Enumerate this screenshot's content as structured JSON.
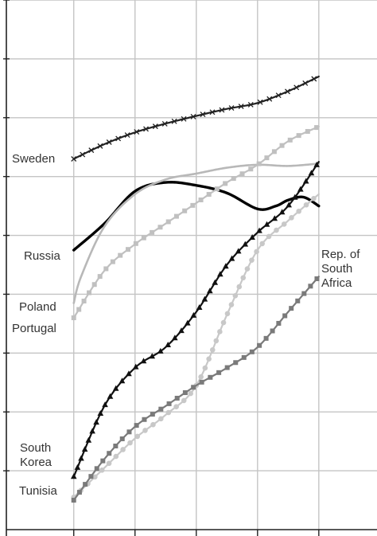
{
  "chart_data": {
    "type": "line",
    "title": "",
    "xlabel": "",
    "ylabel": "",
    "x": [
      0,
      1,
      2,
      3,
      4
    ],
    "xlim": [
      -1.1,
      4.95
    ],
    "ylim": [
      0,
      9
    ],
    "grid": true,
    "series": [
      {
        "name": "Sweden",
        "label_lines": [
          "Sweden"
        ],
        "color": "#222222",
        "marker": "x",
        "points": [
          [
            0,
            6.3
          ],
          [
            0.5,
            6.55
          ],
          [
            1,
            6.75
          ],
          [
            1.5,
            6.9
          ],
          [
            2,
            7.03
          ],
          [
            2.5,
            7.15
          ],
          [
            3,
            7.25
          ],
          [
            3.5,
            7.45
          ],
          [
            4,
            7.7
          ]
        ]
      },
      {
        "name": "Russia",
        "label_lines": [
          "Russia"
        ],
        "color": "#000000",
        "marker": "none",
        "points": [
          [
            0,
            4.75
          ],
          [
            0.5,
            5.2
          ],
          [
            1,
            5.75
          ],
          [
            1.5,
            5.9
          ],
          [
            2,
            5.85
          ],
          [
            2.5,
            5.72
          ],
          [
            3,
            5.45
          ],
          [
            3.3,
            5.5
          ],
          [
            3.5,
            5.6
          ],
          [
            3.75,
            5.65
          ],
          [
            4,
            5.5
          ]
        ]
      },
      {
        "name": "Poland",
        "label_lines": [
          "Poland"
        ],
        "color": "#b8b8b8",
        "marker": "none",
        "points": [
          [
            0,
            3.85
          ],
          [
            0.12,
            4.3
          ],
          [
            0.5,
            5.15
          ],
          [
            1,
            5.7
          ],
          [
            1.5,
            5.95
          ],
          [
            2,
            6.05
          ],
          [
            2.5,
            6.15
          ],
          [
            3,
            6.2
          ],
          [
            3.5,
            6.18
          ],
          [
            4,
            6.22
          ]
        ]
      },
      {
        "name": "Portugal",
        "label_lines": [
          "Portugal"
        ],
        "color": "#c0c0c0",
        "marker": "square",
        "points": [
          [
            0,
            3.6
          ],
          [
            0.5,
            4.4
          ],
          [
            1,
            4.85
          ],
          [
            1.5,
            5.2
          ],
          [
            2,
            5.55
          ],
          [
            2.5,
            5.9
          ],
          [
            3,
            6.2
          ],
          [
            3.5,
            6.6
          ],
          [
            4,
            6.85
          ]
        ]
      },
      {
        "name": "South Korea",
        "label_lines": [
          "South",
          "Korea"
        ],
        "color": "#111111",
        "marker": "triangle",
        "points": [
          [
            0,
            0.9
          ],
          [
            0.5,
            2.1
          ],
          [
            1,
            2.75
          ],
          [
            1.5,
            3.1
          ],
          [
            2,
            3.7
          ],
          [
            2.5,
            4.5
          ],
          [
            3,
            5.05
          ],
          [
            3.5,
            5.5
          ],
          [
            4,
            6.25
          ]
        ]
      },
      {
        "name": "Tunisia",
        "label_lines": [
          "Tunisia"
        ],
        "color": "#c8c8c8",
        "marker": "circle",
        "points": [
          [
            0,
            0.55
          ],
          [
            0.5,
            1.05
          ],
          [
            1,
            1.55
          ],
          [
            1.5,
            1.95
          ],
          [
            2,
            2.45
          ],
          [
            2.5,
            3.65
          ],
          [
            3,
            4.75
          ],
          [
            3.5,
            5.25
          ],
          [
            4,
            5.7
          ]
        ]
      },
      {
        "name": "Rep. of South Africa",
        "label_lines": [
          "Rep. of",
          "South",
          "Africa"
        ],
        "color": "#7a7a7a",
        "marker": "square",
        "points": [
          [
            0,
            0.5
          ],
          [
            0.5,
            1.2
          ],
          [
            1,
            1.75
          ],
          [
            1.5,
            2.1
          ],
          [
            2,
            2.45
          ],
          [
            2.5,
            2.75
          ],
          [
            3,
            3.1
          ],
          [
            3.5,
            3.7
          ],
          [
            4,
            4.3
          ]
        ]
      }
    ]
  }
}
